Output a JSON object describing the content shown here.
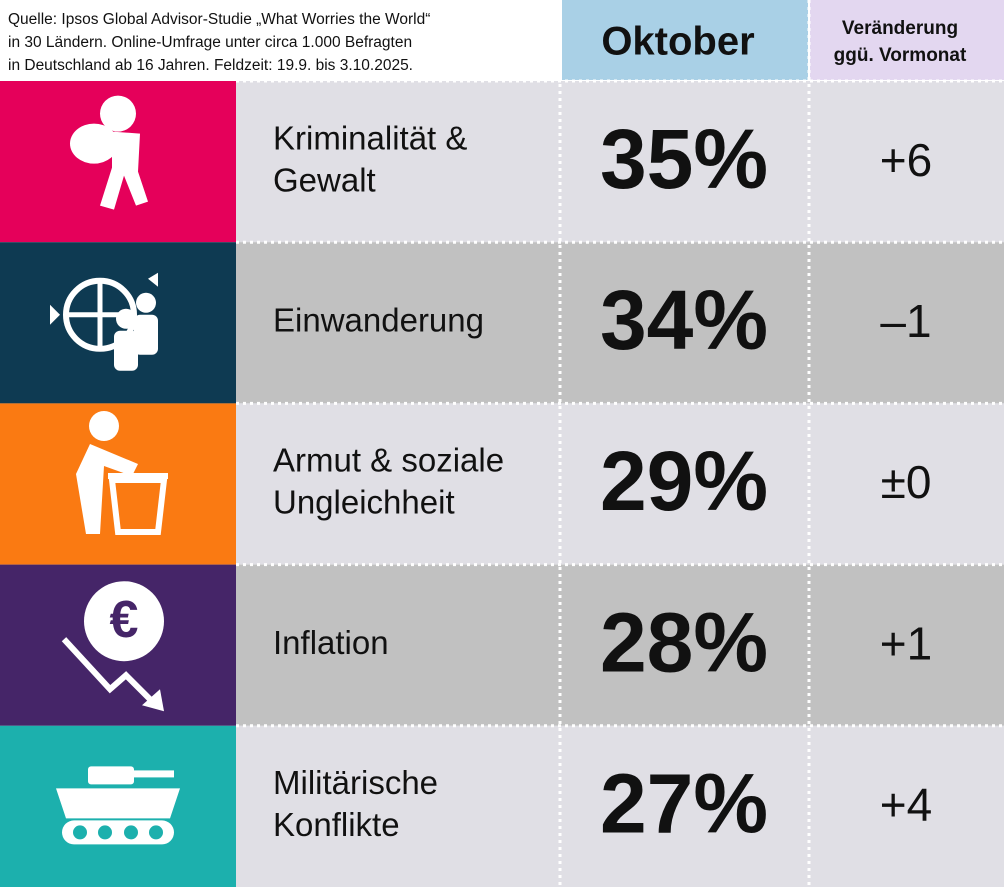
{
  "header": {
    "source": [
      "Quelle: Ipsos Global Advisor-Studie „What Worries the World“",
      "in 30 Ländern. Online-Umfrage unter circa 1.000 Befragten",
      "in Deutschland ab 16 Jahren. Feldzeit: 19.9. bis 3.10.2025."
    ],
    "col_month": "Oktober",
    "col_change": [
      "Veränderung",
      "ggü. Vormonat"
    ]
  },
  "rows": [
    {
      "label": [
        "Kriminalität &",
        "Gewalt"
      ],
      "value": "35%",
      "change": "+6"
    },
    {
      "label": [
        "Einwanderung"
      ],
      "value": "34%",
      "change": "–1"
    },
    {
      "label": [
        "Armut & soziale",
        "Ungleichheit"
      ],
      "value": "29%",
      "change": "±0"
    },
    {
      "label": [
        "Inflation"
      ],
      "value": "28%",
      "change": "+1"
    },
    {
      "label": [
        "Militärische",
        "Konflikte"
      ],
      "value": "27%",
      "change": "+4"
    }
  ]
}
